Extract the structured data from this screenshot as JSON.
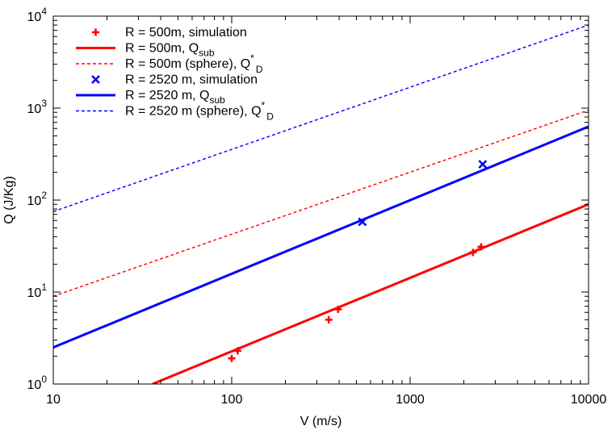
{
  "chart_data": {
    "type": "line",
    "xlabel": "V (m/s)",
    "ylabel": "Q (J/Kg)",
    "xscale": "log",
    "yscale": "log",
    "xlim": [
      10,
      10000
    ],
    "ylim": [
      1,
      10000
    ],
    "grid": false,
    "legend_position": "top-left",
    "x_ticks": [
      "10",
      "100",
      "1000",
      "10000"
    ],
    "y_ticks": [
      {
        "base": "10",
        "exp": "0"
      },
      {
        "base": "10",
        "exp": "1"
      },
      {
        "base": "10",
        "exp": "2"
      },
      {
        "base": "10",
        "exp": "3"
      },
      {
        "base": "10",
        "exp": "4"
      }
    ],
    "series": [
      {
        "name": "R = 500m, simulation",
        "kind": "scatter",
        "marker": "plus",
        "color": "#ff0000",
        "points": [
          [
            100,
            1.9
          ],
          [
            108,
            2.3
          ],
          [
            350,
            5.0
          ],
          [
            395,
            6.5
          ],
          [
            2250,
            27
          ],
          [
            2500,
            31
          ]
        ]
      },
      {
        "name": "R = 500m, Q_sub",
        "kind": "line",
        "style": "solid",
        "color": "#ff0000",
        "points": [
          [
            36,
            1.0
          ],
          [
            10000,
            90
          ]
        ]
      },
      {
        "name": "R = 500m (sphere), Q*_D",
        "kind": "line",
        "style": "dashed",
        "color": "#ff0000",
        "points": [
          [
            10,
            9.0
          ],
          [
            10000,
            950
          ]
        ]
      },
      {
        "name": "R = 2520 m, simulation",
        "kind": "scatter",
        "marker": "cross",
        "color": "#0000ff",
        "points": [
          [
            540,
            58
          ],
          [
            2550,
            245
          ]
        ]
      },
      {
        "name": "R = 2520 m, Q_sub",
        "kind": "line",
        "style": "solid",
        "color": "#0000ff",
        "points": [
          [
            10,
            2.5
          ],
          [
            10000,
            630
          ]
        ]
      },
      {
        "name": "R = 2520 m (sphere), Q*_D",
        "kind": "line",
        "style": "dashed",
        "color": "#0000ff",
        "points": [
          [
            10,
            75
          ],
          [
            10000,
            8000
          ]
        ]
      }
    ],
    "legend": [
      {
        "main": "R = 500m, simulation"
      },
      {
        "main": "R = 500m, Q",
        "sub": "sub"
      },
      {
        "main": "R = 500m (sphere), Q",
        "sup": "*",
        "sub": "D"
      },
      {
        "main": "R = 2520 m, simulation"
      },
      {
        "main": "R = 2520 m, Q",
        "sub": "sub"
      },
      {
        "main": "R = 2520 m (sphere), Q",
        "sup": "*",
        "sub": "D"
      }
    ]
  }
}
